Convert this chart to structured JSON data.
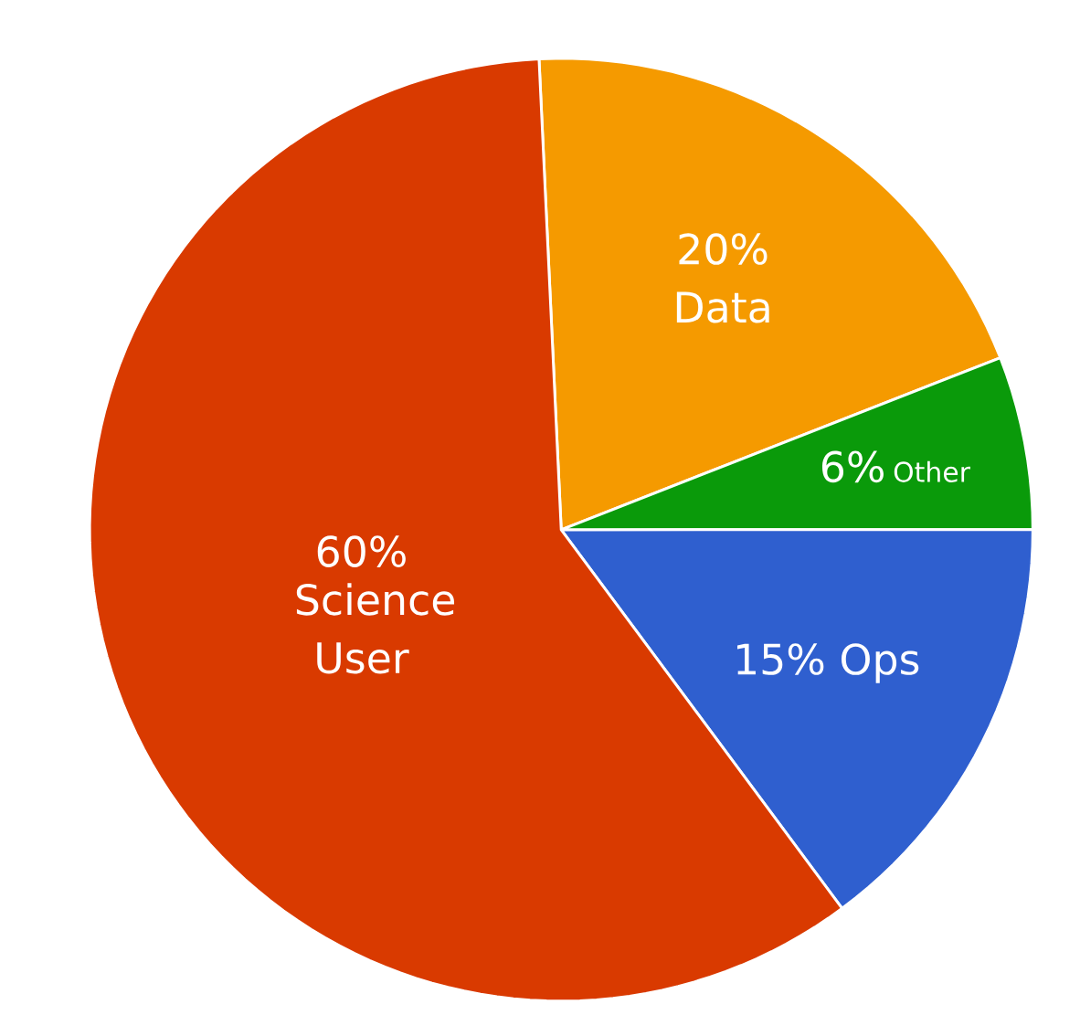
{
  "chart_data": {
    "type": "pie",
    "categories": [
      "Data",
      "Other",
      "Ops",
      "Science User"
    ],
    "values": [
      20,
      6,
      15,
      60
    ],
    "value_labels": [
      "20%",
      "6%",
      "15%",
      "60%"
    ],
    "colors": [
      "#f59a00",
      "#0a9a0a",
      "#2f5fcf",
      "#d93a00"
    ]
  }
}
